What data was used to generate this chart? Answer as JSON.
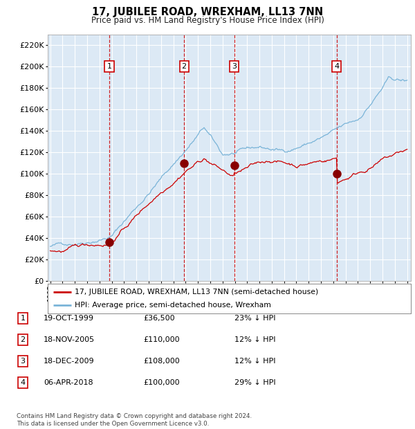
{
  "title": "17, JUBILEE ROAD, WREXHAM, LL13 7NN",
  "subtitle": "Price paid vs. HM Land Registry's House Price Index (HPI)",
  "plot_bg_color": "#dce9f5",
  "outer_bg_color": "#ffffff",
  "ylim": [
    0,
    230000
  ],
  "yticks": [
    0,
    20000,
    40000,
    60000,
    80000,
    100000,
    120000,
    140000,
    160000,
    180000,
    200000,
    220000
  ],
  "xstart_year": 1995,
  "xend_year": 2024,
  "hpi_color": "#7ab4d8",
  "price_color": "#cc0000",
  "sale_marker_color": "#880000",
  "vline_color": "#cc0000",
  "grid_color": "#ffffff",
  "sales": [
    {
      "date_decimal": 1999.8,
      "price": 36500,
      "label": "1"
    },
    {
      "date_decimal": 2005.88,
      "price": 110000,
      "label": "2"
    },
    {
      "date_decimal": 2009.96,
      "price": 108000,
      "label": "3"
    },
    {
      "date_decimal": 2018.26,
      "price": 100000,
      "label": "4"
    }
  ],
  "legend_red_label": "17, JUBILEE ROAD, WREXHAM, LL13 7NN (semi-detached house)",
  "legend_blue_label": "HPI: Average price, semi-detached house, Wrexham",
  "table_rows": [
    {
      "num": "1",
      "date": "19-OCT-1999",
      "price": "£36,500",
      "pct": "23% ↓ HPI"
    },
    {
      "num": "2",
      "date": "18-NOV-2005",
      "price": "£110,000",
      "pct": "12% ↓ HPI"
    },
    {
      "num": "3",
      "date": "18-DEC-2009",
      "price": "£108,000",
      "pct": "12% ↓ HPI"
    },
    {
      "num": "4",
      "date": "06-APR-2018",
      "price": "£100,000",
      "pct": "29% ↓ HPI"
    }
  ],
  "footer": "Contains HM Land Registry data © Crown copyright and database right 2024.\nThis data is licensed under the Open Government Licence v3.0."
}
